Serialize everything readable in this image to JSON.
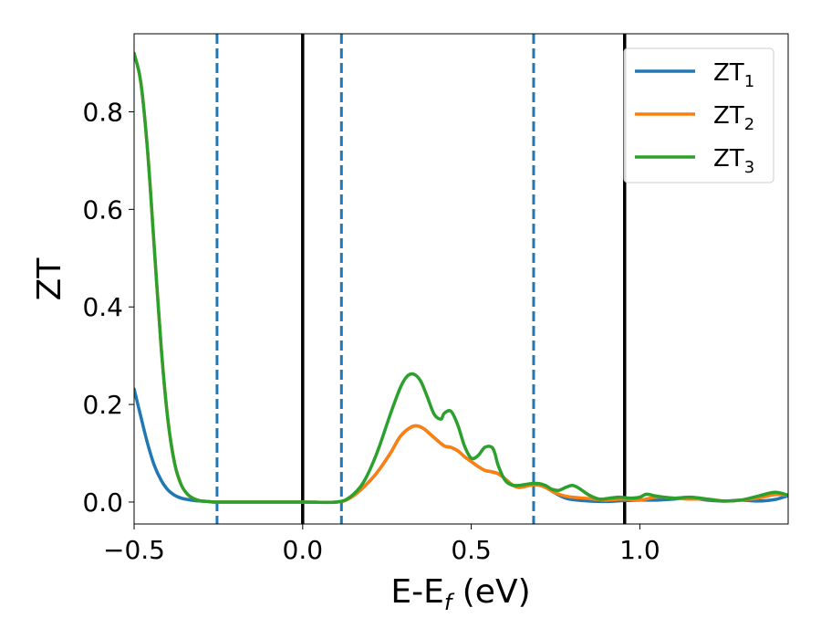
{
  "chart_data": {
    "type": "line",
    "title": "",
    "xlabel_main": "E-E",
    "xlabel_sub": "f",
    "xlabel_unit": " (eV)",
    "ylabel": "ZT",
    "xlim": [
      -0.5,
      1.44
    ],
    "ylim": [
      -0.045,
      0.96
    ],
    "grid": false,
    "legend_position": "top-right",
    "x_ticks": [
      {
        "value": -0.5,
        "label": "−0.5"
      },
      {
        "value": 0.0,
        "label": "0.0"
      },
      {
        "value": 0.5,
        "label": "0.5"
      },
      {
        "value": 1.0,
        "label": "1.0"
      }
    ],
    "y_ticks": [
      {
        "value": 0.0,
        "label": "0.0"
      },
      {
        "value": 0.2,
        "label": "0.2"
      },
      {
        "value": 0.4,
        "label": "0.4"
      },
      {
        "value": 0.6,
        "label": "0.6"
      },
      {
        "value": 0.8,
        "label": "0.8"
      }
    ],
    "series": [
      {
        "name": "ZT",
        "name_sub": "1",
        "color": "#1f77b4",
        "x": [
          -0.5,
          -0.48,
          -0.46,
          -0.44,
          -0.42,
          -0.4,
          -0.38,
          -0.36,
          -0.34,
          -0.32,
          -0.3,
          -0.28,
          -0.26,
          -0.2,
          -0.1,
          0.0,
          0.1,
          0.14,
          0.18,
          0.22,
          0.26,
          0.29,
          0.32,
          0.34,
          0.36,
          0.38,
          0.4,
          0.42,
          0.44,
          0.46,
          0.48,
          0.5,
          0.52,
          0.54,
          0.56,
          0.58,
          0.6,
          0.62,
          0.64,
          0.66,
          0.68,
          0.7,
          0.72,
          0.74,
          0.76,
          0.78,
          0.8,
          0.85,
          0.9,
          0.95,
          1.0,
          1.05,
          1.1,
          1.15,
          1.2,
          1.25,
          1.3,
          1.35,
          1.4,
          1.44
        ],
        "y": [
          0.232,
          0.175,
          0.12,
          0.075,
          0.045,
          0.025,
          0.014,
          0.008,
          0.005,
          0.003,
          0.002,
          0.001,
          0.0,
          0.0,
          0.0,
          0.0,
          0.0,
          0.008,
          0.03,
          0.06,
          0.1,
          0.135,
          0.153,
          0.156,
          0.15,
          0.138,
          0.126,
          0.115,
          0.112,
          0.105,
          0.093,
          0.083,
          0.073,
          0.065,
          0.062,
          0.058,
          0.048,
          0.036,
          0.03,
          0.032,
          0.035,
          0.035,
          0.03,
          0.022,
          0.014,
          0.008,
          0.005,
          0.002,
          0.001,
          0.003,
          0.004,
          0.004,
          0.006,
          0.008,
          0.004,
          0.002,
          0.004,
          0.002,
          0.005,
          0.013
        ]
      },
      {
        "name": "ZT",
        "name_sub": "2",
        "color": "#ff7f0e",
        "x": [
          -0.5,
          -0.48,
          -0.46,
          -0.44,
          -0.42,
          -0.4,
          -0.38,
          -0.36,
          -0.34,
          -0.32,
          -0.3,
          -0.28,
          -0.26,
          -0.2,
          -0.1,
          0.0,
          0.1,
          0.14,
          0.18,
          0.22,
          0.26,
          0.29,
          0.32,
          0.34,
          0.36,
          0.38,
          0.4,
          0.42,
          0.44,
          0.46,
          0.48,
          0.5,
          0.52,
          0.54,
          0.56,
          0.58,
          0.6,
          0.62,
          0.64,
          0.66,
          0.68,
          0.7,
          0.72,
          0.74,
          0.76,
          0.78,
          0.8,
          0.85,
          0.9,
          0.95,
          1.0,
          1.05,
          1.1,
          1.15,
          1.2,
          1.25,
          1.3,
          1.35,
          1.4,
          1.44
        ],
        "y": [
          0.92,
          0.86,
          0.72,
          0.52,
          0.32,
          0.17,
          0.08,
          0.035,
          0.015,
          0.006,
          0.002,
          0.001,
          0.0,
          0.0,
          0.0,
          0.0,
          0.0,
          0.008,
          0.03,
          0.06,
          0.1,
          0.135,
          0.153,
          0.156,
          0.15,
          0.138,
          0.126,
          0.115,
          0.112,
          0.105,
          0.093,
          0.083,
          0.073,
          0.065,
          0.062,
          0.058,
          0.048,
          0.036,
          0.03,
          0.032,
          0.035,
          0.035,
          0.03,
          0.022,
          0.016,
          0.012,
          0.01,
          0.007,
          0.004,
          0.006,
          0.004,
          0.01,
          0.008,
          0.006,
          0.006,
          0.002,
          0.004,
          0.008,
          0.015,
          0.014
        ]
      },
      {
        "name": "ZT",
        "name_sub": "3",
        "color": "#2ca02c",
        "x": [
          -0.5,
          -0.48,
          -0.46,
          -0.44,
          -0.42,
          -0.4,
          -0.38,
          -0.36,
          -0.34,
          -0.32,
          -0.3,
          -0.28,
          -0.26,
          -0.2,
          -0.1,
          0.0,
          0.1,
          0.14,
          0.18,
          0.22,
          0.26,
          0.29,
          0.31,
          0.33,
          0.35,
          0.37,
          0.39,
          0.41,
          0.42,
          0.44,
          0.46,
          0.48,
          0.5,
          0.52,
          0.54,
          0.56,
          0.57,
          0.58,
          0.6,
          0.62,
          0.64,
          0.66,
          0.68,
          0.7,
          0.72,
          0.74,
          0.76,
          0.78,
          0.8,
          0.82,
          0.85,
          0.88,
          0.91,
          0.94,
          0.97,
          1.0,
          1.02,
          1.05,
          1.1,
          1.15,
          1.2,
          1.25,
          1.3,
          1.35,
          1.4,
          1.44
        ],
        "y": [
          0.92,
          0.86,
          0.72,
          0.52,
          0.32,
          0.17,
          0.08,
          0.035,
          0.015,
          0.006,
          0.002,
          0.001,
          0.0,
          0.0,
          0.0,
          0.0,
          0.0,
          0.01,
          0.04,
          0.1,
          0.18,
          0.235,
          0.258,
          0.262,
          0.248,
          0.215,
          0.18,
          0.17,
          0.182,
          0.186,
          0.158,
          0.115,
          0.09,
          0.095,
          0.112,
          0.113,
          0.1,
          0.075,
          0.045,
          0.035,
          0.034,
          0.036,
          0.038,
          0.038,
          0.034,
          0.026,
          0.024,
          0.03,
          0.034,
          0.028,
          0.014,
          0.006,
          0.008,
          0.01,
          0.008,
          0.01,
          0.016,
          0.012,
          0.008,
          0.01,
          0.006,
          0.002,
          0.004,
          0.012,
          0.02,
          0.014
        ]
      }
    ],
    "vertical_lines": [
      {
        "x": -0.254,
        "style": "dashed",
        "color": "#1f77b4"
      },
      {
        "x": 0.0,
        "style": "solid",
        "color": "#000000"
      },
      {
        "x": 0.115,
        "style": "dashed",
        "color": "#1f77b4"
      },
      {
        "x": 0.685,
        "style": "dashed",
        "color": "#1f77b4"
      },
      {
        "x": 0.955,
        "style": "solid",
        "color": "#000000"
      }
    ]
  }
}
